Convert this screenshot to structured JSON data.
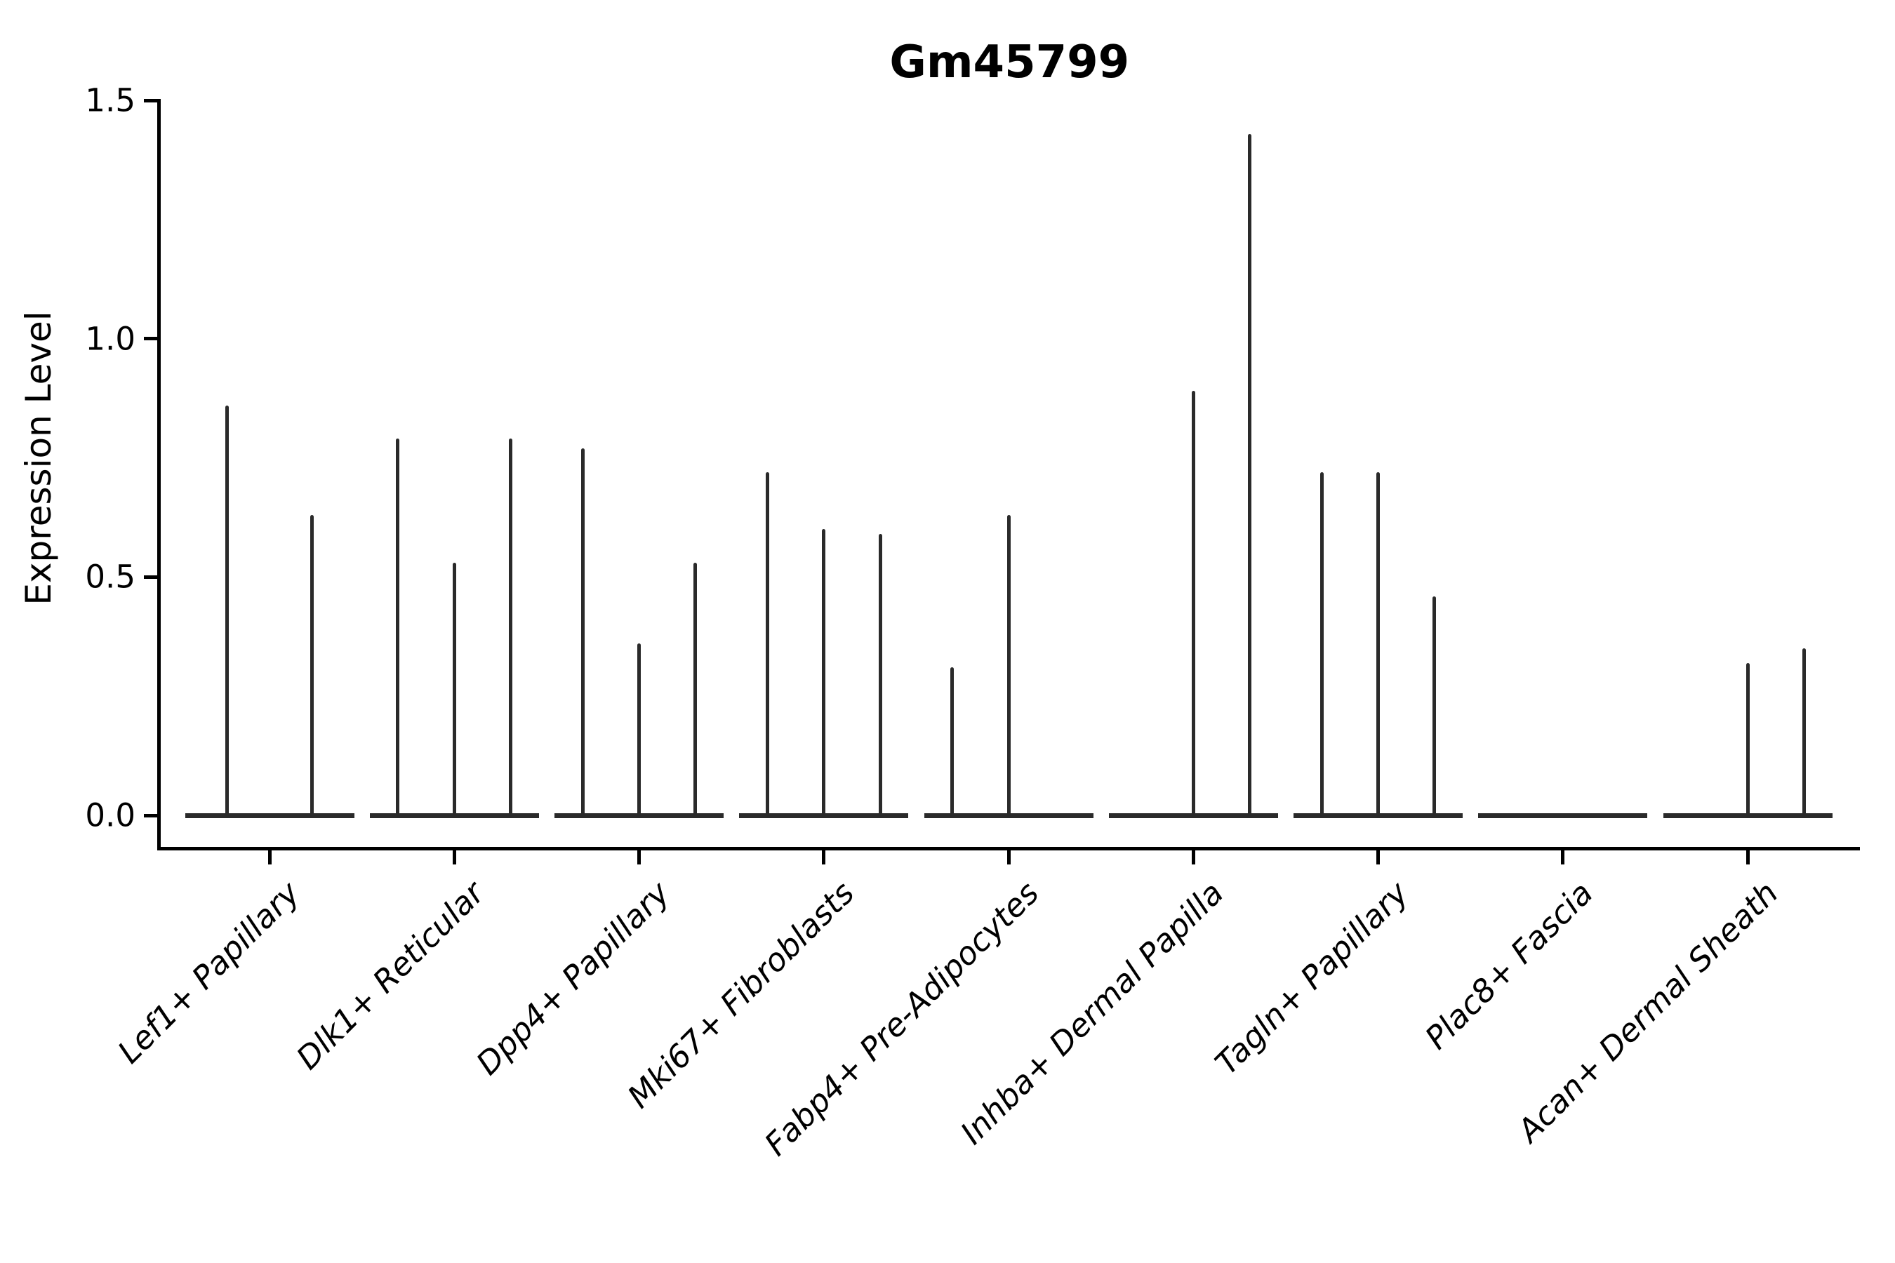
{
  "chart_data": {
    "type": "violin",
    "title": "Gm45799",
    "xlabel": "",
    "ylabel": "Expression Level",
    "ylim": [
      0,
      1.5
    ],
    "yticks": [
      {
        "value": 0.0,
        "label": "0.0"
      },
      {
        "value": 0.5,
        "label": "0.5"
      },
      {
        "value": 1.0,
        "label": "1.0"
      },
      {
        "value": 1.5,
        "label": "1.5"
      }
    ],
    "grid": false,
    "legend": "none",
    "line_color": "#2a2a2a",
    "axis_color": "#000000",
    "categories": [
      "Lef1+ Papillary",
      "Dlk1+ Reticular",
      "Dpp4+ Papillary",
      "Mki67+ Fibroblasts",
      "Fabp4+ Pre-Adipocytes",
      "Inhba+ Dermal Papilla",
      "Tagln+ Papillary",
      "Plac8+ Fascia",
      "Acan+ Dermal Sheath"
    ],
    "series_note": "Each category holds 2-3 collapsed violins (nearly all observations at 0); value listed is the max expression spike height of each violin, 0 = fully flat violin",
    "groups": [
      {
        "label": "Lef1+ Papillary",
        "violin_maxima": [
          0.86,
          0.63
        ]
      },
      {
        "label": "Dlk1+ Reticular",
        "violin_maxima": [
          0.79,
          0.53,
          0.79
        ]
      },
      {
        "label": "Dpp4+ Papillary",
        "violin_maxima": [
          0.77,
          0.36,
          0.53
        ]
      },
      {
        "label": "Mki67+ Fibroblasts",
        "violin_maxima": [
          0.72,
          0.6,
          0.59
        ]
      },
      {
        "label": "Fabp4+ Pre-Adipocytes",
        "violin_maxima": [
          0.31,
          0.63,
          0
        ]
      },
      {
        "label": "Inhba+ Dermal Papilla",
        "violin_maxima": [
          0,
          0.89,
          1.43
        ]
      },
      {
        "label": "Tagln+ Papillary",
        "violin_maxima": [
          0.72,
          0.72,
          0.46
        ]
      },
      {
        "label": "Plac8+ Fascia",
        "violin_maxima": [
          0,
          0,
          0
        ]
      },
      {
        "label": "Acan+ Dermal Sheath",
        "violin_maxima": [
          0,
          0.32,
          0.35
        ]
      }
    ]
  }
}
